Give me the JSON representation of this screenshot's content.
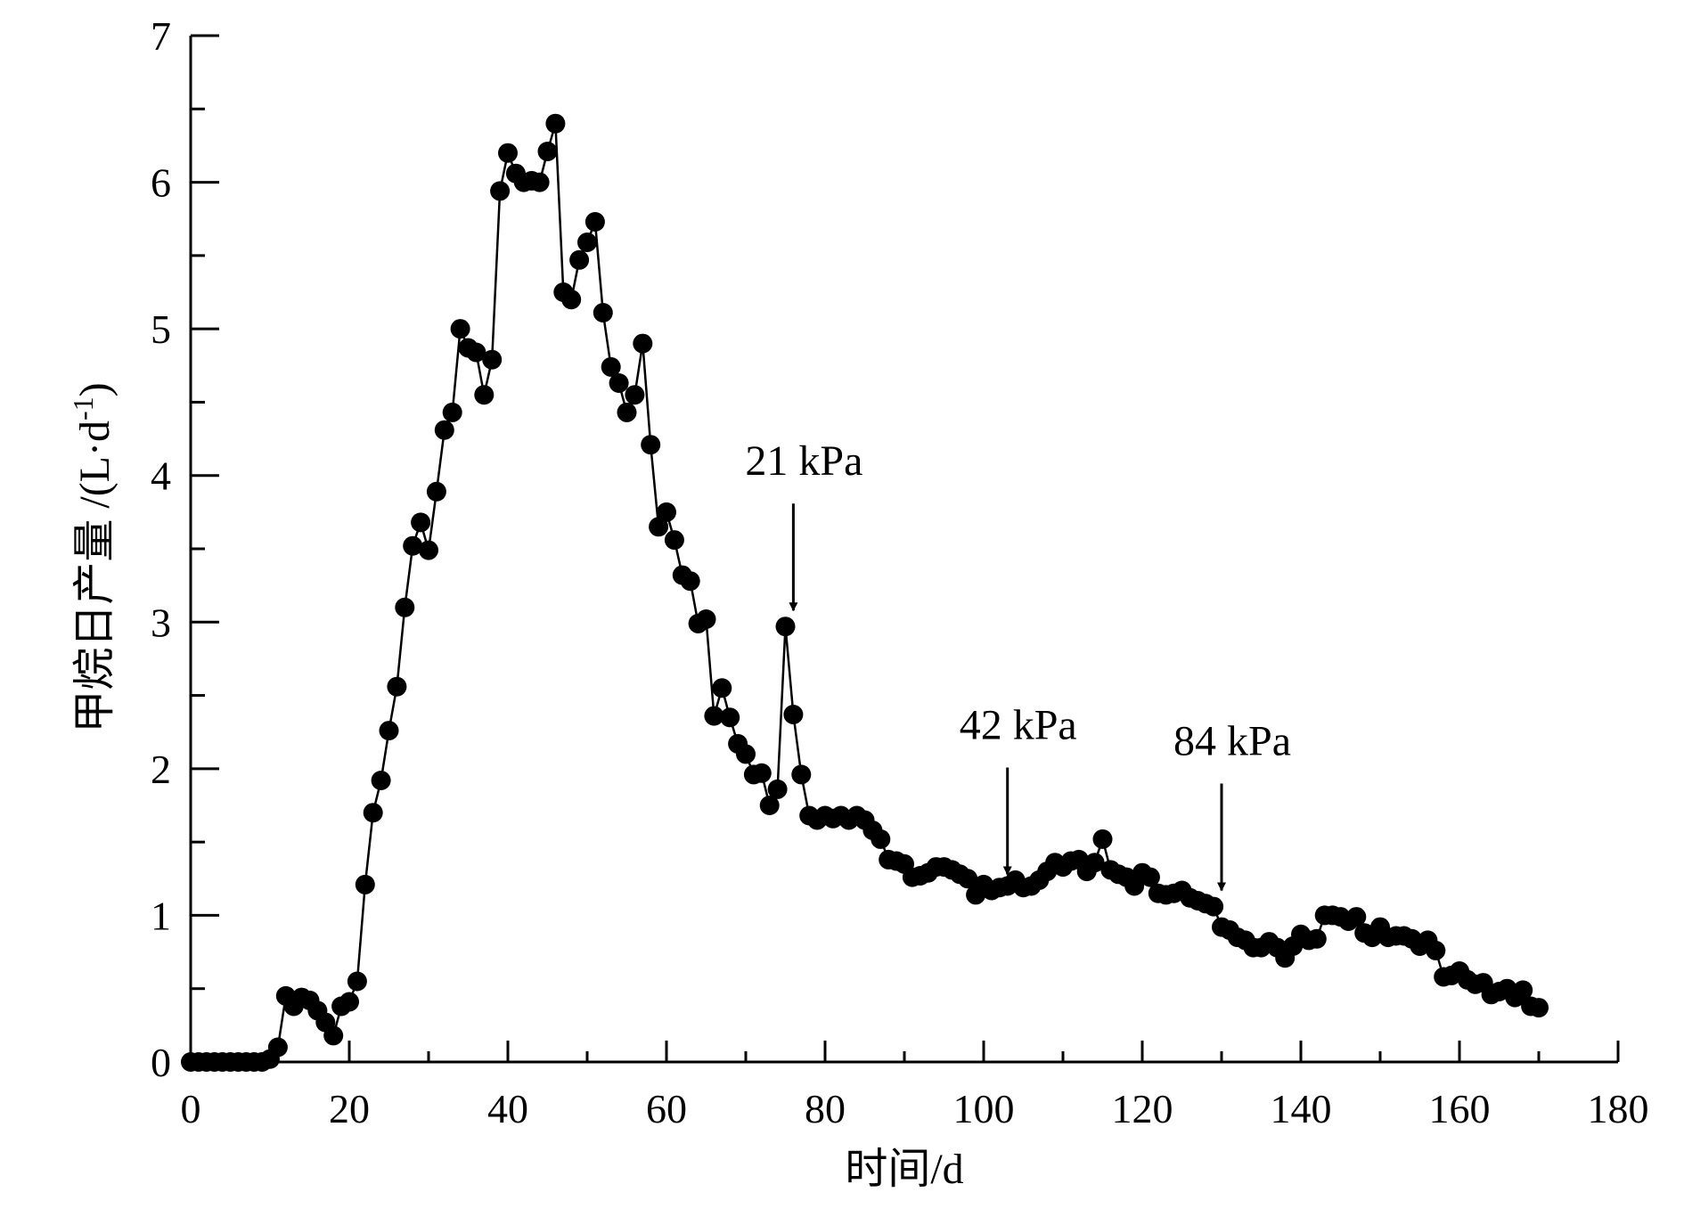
{
  "chart_data": {
    "type": "line",
    "title": "",
    "xlabel": "时间/d",
    "ylabel_main": "甲烷日产量 /(L·d",
    "ylabel_sup": "-1",
    "ylabel_tail": ")",
    "xlim": [
      0,
      180
    ],
    "ylim": [
      0,
      7
    ],
    "xticks": [
      0,
      20,
      40,
      60,
      80,
      100,
      120,
      140,
      160,
      180
    ],
    "xtick_labels": [
      "0",
      "20",
      "40",
      "60",
      "80",
      "100",
      "120",
      "140",
      "160",
      "180"
    ],
    "yticks": [
      0,
      1,
      2,
      3,
      4,
      5,
      6,
      7
    ],
    "ytick_labels": [
      "0",
      "1",
      "2",
      "3",
      "4",
      "5",
      "6",
      "7"
    ],
    "grid": false,
    "legend": "none",
    "marker": "filled-circle",
    "series": [
      {
        "color": "#000000",
        "x": [
          0,
          1,
          2,
          3,
          4,
          5,
          6,
          7,
          8,
          9,
          10,
          11,
          12,
          13,
          14,
          15,
          16,
          17,
          18,
          19,
          20,
          21,
          22,
          23,
          24,
          25,
          26,
          27,
          28,
          29,
          30,
          31,
          32,
          33,
          34,
          35,
          36,
          37,
          38,
          39,
          40,
          41,
          42,
          43,
          44,
          45,
          46,
          47,
          48,
          49,
          50,
          51,
          52,
          53,
          54,
          55,
          56,
          57,
          58,
          59,
          60,
          61,
          62,
          63,
          64,
          65,
          66,
          67,
          68,
          69,
          70,
          71,
          72,
          73,
          74,
          75,
          76,
          77,
          78,
          79,
          80,
          81,
          82,
          83,
          84,
          85,
          86,
          87,
          88,
          89,
          90,
          91,
          92,
          93,
          94,
          95,
          96,
          97,
          98,
          99,
          100,
          101,
          102,
          103,
          104,
          105,
          106,
          107,
          108,
          109,
          110,
          111,
          112,
          113,
          114,
          115,
          116,
          117,
          118,
          119,
          120,
          121,
          122,
          123,
          124,
          125,
          126,
          127,
          128,
          129,
          130,
          131,
          132,
          133,
          134,
          135,
          136,
          137,
          138,
          139,
          140,
          141,
          142,
          143,
          144,
          145,
          146,
          147,
          148,
          149,
          150,
          151,
          152,
          153,
          154,
          155,
          156,
          157,
          158,
          159,
          160,
          161,
          162,
          163,
          164,
          165,
          166,
          167,
          168,
          169,
          170
        ],
        "y": [
          0,
          0,
          0,
          0,
          0,
          0,
          0,
          0,
          0,
          0,
          0.02,
          0.1,
          0.45,
          0.38,
          0.44,
          0.42,
          0.35,
          0.27,
          0.18,
          0.38,
          0.41,
          0.55,
          1.21,
          1.7,
          1.92,
          2.26,
          2.56,
          3.1,
          3.52,
          3.68,
          3.49,
          3.89,
          4.31,
          4.43,
          5.0,
          4.87,
          4.84,
          4.55,
          4.79,
          5.94,
          6.2,
          6.06,
          6.0,
          6.01,
          6.0,
          6.21,
          6.4,
          5.25,
          5.2,
          5.47,
          5.59,
          5.73,
          5.11,
          4.74,
          4.63,
          4.43,
          4.55,
          4.9,
          4.21,
          3.65,
          3.75,
          3.56,
          3.32,
          3.28,
          2.99,
          3.02,
          2.36,
          2.55,
          2.35,
          2.17,
          2.1,
          1.96,
          1.97,
          1.75,
          1.86,
          2.97,
          2.37,
          1.96,
          1.68,
          1.65,
          1.68,
          1.66,
          1.68,
          1.65,
          1.68,
          1.65,
          1.58,
          1.52,
          1.38,
          1.37,
          1.35,
          1.26,
          1.27,
          1.29,
          1.33,
          1.33,
          1.31,
          1.28,
          1.25,
          1.14,
          1.21,
          1.17,
          1.19,
          1.2,
          1.24,
          1.19,
          1.2,
          1.24,
          1.3,
          1.36,
          1.33,
          1.37,
          1.38,
          1.3,
          1.36,
          1.52,
          1.31,
          1.28,
          1.26,
          1.2,
          1.29,
          1.26,
          1.15,
          1.14,
          1.15,
          1.17,
          1.12,
          1.1,
          1.08,
          1.06,
          0.92,
          0.9,
          0.85,
          0.83,
          0.78,
          0.78,
          0.82,
          0.78,
          0.71,
          0.79,
          0.87,
          0.83,
          0.84,
          1.0,
          1.0,
          0.99,
          0.96,
          0.99,
          0.88,
          0.85,
          0.92,
          0.85,
          0.86,
          0.86,
          0.84,
          0.79,
          0.83,
          0.76,
          0.58,
          0.59,
          0.62,
          0.56,
          0.53,
          0.54,
          0.46,
          0.48,
          0.5,
          0.44,
          0.49,
          0.38,
          0.37
        ]
      }
    ],
    "annotations": [
      {
        "text": "21 kPa",
        "x": 76,
        "y": 2.97
      },
      {
        "text": "42 kPa",
        "x": 103,
        "y": 1.17
      },
      {
        "text": "84 kPa",
        "x": 130,
        "y": 1.06
      }
    ]
  }
}
